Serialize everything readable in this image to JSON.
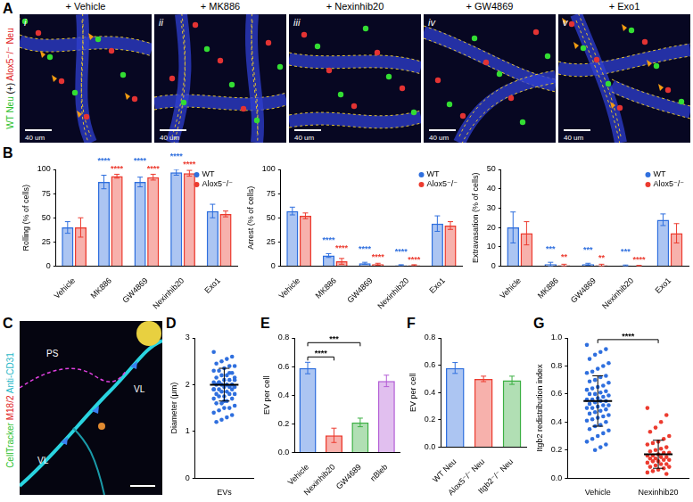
{
  "figure_A": {
    "panel_label": "A",
    "side_label": [
      {
        "text": "WT Neu",
        "color": "#2bbf2b"
      },
      {
        "text": "(+)",
        "color": "#000000"
      },
      {
        "text": "Alox5⁻/⁻ Neu",
        "color": "#e02020"
      }
    ],
    "images": [
      {
        "numeral": "i",
        "title": "+ Vehicle",
        "scale_bar": "40 um",
        "arrowheads": true
      },
      {
        "numeral": "ii",
        "title": "+ MK886",
        "scale_bar": "40 um",
        "arrowheads": false
      },
      {
        "numeral": "iii",
        "title": "+ Nexinhib20",
        "scale_bar": "40 um",
        "arrowheads": false
      },
      {
        "numeral": "iv",
        "title": "+ GW4869",
        "scale_bar": "40 um",
        "arrowheads": false
      },
      {
        "numeral": "v",
        "title": "+ Exo1",
        "scale_bar": "40 um",
        "arrowheads": true
      }
    ]
  },
  "figure_C": {
    "panel_label": "C",
    "side_label": [
      {
        "text": "CellTracker",
        "color": "#2bbf2b"
      },
      {
        "text": "M18/2",
        "color": "#e02020"
      },
      {
        "text": "Anti-CD31",
        "color": "#1fb8c8"
      }
    ],
    "regions": [
      "PS",
      "VL",
      "VL"
    ]
  },
  "chart_data": [
    {
      "panel_label": "B",
      "type": "bar",
      "y_label": "Rolling (% of cells)",
      "categories": [
        "Vehicle",
        "MK886",
        "GW4869",
        "Nexinhib20",
        "Exo1"
      ],
      "series": [
        {
          "name": "WT",
          "color": "#2f6fde",
          "values": [
            40,
            87,
            87,
            97,
            57
          ],
          "errors": [
            6,
            7,
            5,
            3,
            7
          ],
          "significance": [
            null,
            "****",
            "****",
            "****",
            null
          ]
        },
        {
          "name": "Alox5⁻/⁻",
          "color": "#ec3b2f",
          "values": [
            40,
            93,
            92,
            96,
            54
          ],
          "errors": [
            10,
            2,
            3,
            3,
            3
          ],
          "significance": [
            null,
            "****",
            "****",
            "****",
            null
          ]
        }
      ],
      "ylim": [
        0,
        100
      ],
      "yticks": [
        0,
        25,
        50,
        75,
        100
      ],
      "grid": false,
      "legend": "top-right"
    },
    {
      "type": "bar",
      "y_label": "Arrest (% of cells)",
      "categories": [
        "Vehicle",
        "MK886",
        "GW4869",
        "Nexinhib20",
        "Exo1"
      ],
      "series": [
        {
          "name": "WT",
          "color": "#2f6fde",
          "values": [
            57,
            11,
            3,
            1,
            44
          ],
          "errors": [
            4,
            2,
            1,
            0.5,
            8
          ],
          "significance": [
            null,
            "****",
            "****",
            "****",
            null
          ]
        },
        {
          "name": "Alox5⁻/⁻",
          "color": "#ec3b2f",
          "values": [
            52,
            5,
            2,
            1,
            42
          ],
          "errors": [
            3,
            3,
            1,
            0.5,
            4
          ],
          "significance": [
            null,
            "****",
            "****",
            "****",
            null
          ]
        }
      ],
      "ylim": [
        0,
        100
      ],
      "yticks": [
        0,
        25,
        50,
        75,
        100
      ],
      "grid": false,
      "legend": "top-right"
    },
    {
      "type": "bar",
      "y_label": "Extravasation (% of cells)",
      "categories": [
        "Vehicle",
        "MK886",
        "GW4869",
        "Nexinhib20",
        "Exo1"
      ],
      "series": [
        {
          "name": "WT",
          "color": "#2f6fde",
          "values": [
            20,
            1,
            1,
            0.3,
            24
          ],
          "errors": [
            8,
            1,
            0.5,
            0.3,
            3
          ],
          "significance": [
            null,
            "***",
            "***",
            "***",
            null
          ]
        },
        {
          "name": "Alox5⁻/⁻",
          "color": "#ec3b2f",
          "values": [
            17,
            0.5,
            0.5,
            0.2,
            17
          ],
          "errors": [
            6,
            0.5,
            0.5,
            0.2,
            5
          ],
          "significance": [
            null,
            "**",
            "**",
            "****",
            null
          ]
        }
      ],
      "ylim": [
        0,
        50
      ],
      "yticks": [
        0,
        10,
        20,
        30,
        40,
        50
      ],
      "grid": false,
      "legend": "top-right"
    },
    {
      "panel_label": "D",
      "type": "scatter",
      "y_label": "Diameter (μm)",
      "categories": [
        "EVs"
      ],
      "colors": [
        "#2f6fde"
      ],
      "values": [
        [
          2.7,
          2.6,
          2.55,
          2.5,
          2.45,
          2.4,
          2.4,
          2.35,
          2.3,
          2.3,
          2.25,
          2.2,
          2.2,
          2.15,
          2.1,
          2.1,
          2.1,
          2.05,
          2.05,
          2.0,
          2.0,
          2.0,
          2.0,
          1.95,
          1.95,
          1.95,
          1.9,
          1.9,
          1.9,
          1.85,
          1.85,
          1.8,
          1.8,
          1.8,
          1.75,
          1.75,
          1.7,
          1.7,
          1.65,
          1.6,
          1.6,
          1.55,
          1.5,
          1.5,
          1.45,
          1.4,
          1.35,
          1.3,
          1.25,
          1.2,
          2.15,
          2.25,
          1.65,
          2.05,
          1.9
        ]
      ],
      "means": [
        2.0
      ],
      "sds": [
        0.35
      ],
      "ylim": [
        0,
        3
      ],
      "yticks": [
        0,
        1,
        2,
        3
      ],
      "grid": false
    },
    {
      "panel_label": "E",
      "type": "bar",
      "y_label": "EV per cell",
      "categories": [
        "Vehicle",
        "Nexinhib20",
        "GW4689",
        "nBleb"
      ],
      "values": [
        0.59,
        0.12,
        0.21,
        0.5
      ],
      "errors": [
        0.04,
        0.05,
        0.03,
        0.04
      ],
      "colors": [
        "#2f6fde",
        "#ec3b2f",
        "#3cb043",
        "#b45fd6"
      ],
      "comparisons": [
        {
          "from": "Vehicle",
          "to": "Nexinhib20",
          "label": "****"
        },
        {
          "from": "Vehicle",
          "to": "GW4689",
          "label": "***"
        }
      ],
      "ylim": [
        0,
        0.8
      ],
      "yticks": [
        {
          "value": 0,
          "label": "0.0"
        },
        0.2,
        0.4,
        0.6,
        0.8
      ],
      "grid": false
    },
    {
      "panel_label": "F",
      "type": "bar",
      "y_label": "EV per cell",
      "categories": [
        "WT Neu",
        "Alox5⁻/⁻ Neu",
        "Itgb2⁻/⁻ Neu"
      ],
      "values": [
        0.58,
        0.5,
        0.49
      ],
      "errors": [
        0.04,
        0.02,
        0.03
      ],
      "colors": [
        "#2f6fde",
        "#ec3b2f",
        "#3cb043"
      ],
      "ylim": [
        0,
        0.8
      ],
      "yticks": [
        {
          "value": 0,
          "label": "0.0"
        },
        0.2,
        0.4,
        0.6,
        0.8
      ],
      "grid": false
    },
    {
      "panel_label": "G",
      "type": "scatter",
      "y_label": "Itgb2 redistribution index",
      "categories": [
        "Vehicle",
        "Nexinhib20"
      ],
      "colors": [
        "#2f6fde",
        "#ec3b2f"
      ],
      "values": [
        [
          0.95,
          0.92,
          0.9,
          0.88,
          0.85,
          0.82,
          0.8,
          0.78,
          0.76,
          0.75,
          0.73,
          0.72,
          0.7,
          0.69,
          0.68,
          0.66,
          0.65,
          0.64,
          0.63,
          0.62,
          0.61,
          0.6,
          0.6,
          0.59,
          0.58,
          0.57,
          0.56,
          0.56,
          0.55,
          0.55,
          0.54,
          0.53,
          0.52,
          0.52,
          0.51,
          0.5,
          0.5,
          0.49,
          0.48,
          0.47,
          0.46,
          0.45,
          0.44,
          0.43,
          0.42,
          0.41,
          0.4,
          0.38,
          0.37,
          0.35,
          0.34,
          0.32,
          0.3,
          0.28,
          0.26,
          0.24,
          0.22,
          0.2
        ],
        [
          0.5,
          0.45,
          0.4,
          0.36,
          0.33,
          0.3,
          0.28,
          0.26,
          0.25,
          0.24,
          0.22,
          0.21,
          0.2,
          0.19,
          0.18,
          0.18,
          0.17,
          0.16,
          0.16,
          0.15,
          0.15,
          0.14,
          0.14,
          0.13,
          0.13,
          0.12,
          0.12,
          0.11,
          0.1,
          0.1,
          0.09,
          0.08,
          0.08,
          0.07,
          0.06,
          0.05,
          0.04,
          0.03
        ]
      ],
      "means": [
        0.55,
        0.17
      ],
      "sds": [
        0.18,
        0.1
      ],
      "comparisons": [
        {
          "from": "Vehicle",
          "to": "Nexinhib20",
          "label": "****"
        }
      ],
      "ylim": [
        0,
        1
      ],
      "yticks": [
        {
          "value": 0,
          "label": "0.0"
        },
        0.2,
        0.4,
        0.6,
        0.8,
        {
          "value": 1,
          "label": "1.0"
        }
      ],
      "grid": false
    }
  ]
}
